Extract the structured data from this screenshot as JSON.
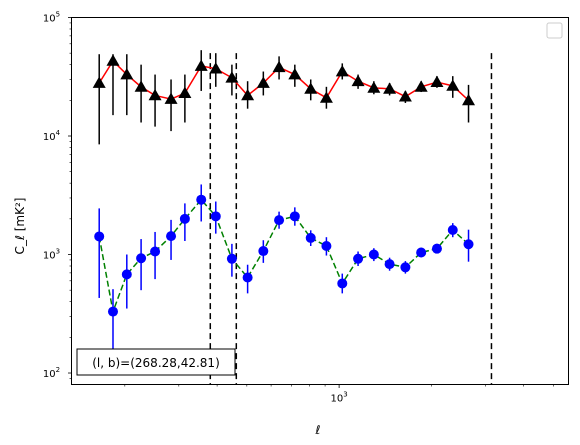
{
  "chart_data": {
    "type": "scatter",
    "title": "",
    "xlabel": "ℓ",
    "ylabel": "C_ℓ [mK²]",
    "xscale": "log",
    "yscale": "log",
    "xlim": [
      134,
      5600
    ],
    "ylim": [
      80,
      100000
    ],
    "x_tick_labels": [
      {
        "value": 1000,
        "base": "10",
        "exp": "3"
      }
    ],
    "y_tick_labels": [
      {
        "value": 100,
        "base": "10",
        "exp": "2"
      },
      {
        "value": 1000,
        "base": "10",
        "exp": "3"
      },
      {
        "value": 10000,
        "base": "10",
        "exp": "4"
      },
      {
        "value": 100000,
        "base": "10",
        "exp": "5"
      }
    ],
    "legend": {
      "location": "upper-right",
      "entries": []
    },
    "annotation": {
      "text": "(l, b)=(268.28,42.81)",
      "location": "lower-left"
    },
    "vlines": [
      380,
      462,
      3140
    ],
    "series": [
      {
        "marker": "triangle",
        "marker_color": "#000000",
        "line_color": "#ff0000",
        "line_style": "solid",
        "points": [
          {
            "x": 165,
            "y": 28000,
            "lo": 8500,
            "hi": 49000
          },
          {
            "x": 183,
            "y": 43000,
            "lo": 15000,
            "hi": 49000
          },
          {
            "x": 203,
            "y": 33000,
            "lo": 15000,
            "hi": 49000
          },
          {
            "x": 226,
            "y": 26000,
            "lo": 13000,
            "hi": 40000
          },
          {
            "x": 251,
            "y": 22000,
            "lo": 12000,
            "hi": 33000
          },
          {
            "x": 283,
            "y": 20500,
            "lo": 11000,
            "hi": 30000
          },
          {
            "x": 314,
            "y": 23000,
            "lo": 13000,
            "hi": 33000
          },
          {
            "x": 355,
            "y": 39000,
            "lo": 24000,
            "hi": 53000
          },
          {
            "x": 396,
            "y": 37000,
            "lo": 26000,
            "hi": 50000
          },
          {
            "x": 447,
            "y": 31000,
            "lo": 22000,
            "hi": 40000
          },
          {
            "x": 503,
            "y": 22000,
            "lo": 17000,
            "hi": 29000
          },
          {
            "x": 566,
            "y": 28000,
            "lo": 22000,
            "hi": 35000
          },
          {
            "x": 637,
            "y": 38000,
            "lo": 30000,
            "hi": 47000
          },
          {
            "x": 717,
            "y": 33000,
            "lo": 26000,
            "hi": 40000
          },
          {
            "x": 808,
            "y": 25000,
            "lo": 20000,
            "hi": 30000
          },
          {
            "x": 909,
            "y": 21000,
            "lo": 17000,
            "hi": 26000
          },
          {
            "x": 1024,
            "y": 35000,
            "lo": 30000,
            "hi": 41000
          },
          {
            "x": 1153,
            "y": 29000,
            "lo": 25000,
            "hi": 33000
          },
          {
            "x": 1298,
            "y": 25500,
            "lo": 22500,
            "hi": 29000
          },
          {
            "x": 1461,
            "y": 25000,
            "lo": 22000,
            "hi": 28000
          },
          {
            "x": 1645,
            "y": 21500,
            "lo": 19000,
            "hi": 24000
          },
          {
            "x": 1852,
            "y": 26000,
            "lo": 23500,
            "hi": 29000
          },
          {
            "x": 2085,
            "y": 28500,
            "lo": 25500,
            "hi": 32000
          },
          {
            "x": 2348,
            "y": 26500,
            "lo": 21000,
            "hi": 32000
          },
          {
            "x": 2643,
            "y": 20000,
            "lo": 13000,
            "hi": 27000
          }
        ]
      },
      {
        "marker": "circle",
        "marker_color": "#0000ff",
        "line_color": "#008000",
        "line_style": "dashed",
        "points": [
          {
            "x": 165,
            "y": 1420,
            "lo": 430,
            "hi": 2450
          },
          {
            "x": 183,
            "y": 330,
            "lo": 150,
            "hi": 510
          },
          {
            "x": 203,
            "y": 680,
            "lo": 350,
            "hi": 1000
          },
          {
            "x": 226,
            "y": 930,
            "lo": 500,
            "hi": 1350
          },
          {
            "x": 251,
            "y": 1060,
            "lo": 620,
            "hi": 1550
          },
          {
            "x": 283,
            "y": 1430,
            "lo": 900,
            "hi": 1960
          },
          {
            "x": 314,
            "y": 2000,
            "lo": 1300,
            "hi": 2700
          },
          {
            "x": 355,
            "y": 2900,
            "lo": 1900,
            "hi": 3900
          },
          {
            "x": 396,
            "y": 2100,
            "lo": 1500,
            "hi": 2800
          },
          {
            "x": 447,
            "y": 920,
            "lo": 650,
            "hi": 1230
          },
          {
            "x": 503,
            "y": 640,
            "lo": 470,
            "hi": 820
          },
          {
            "x": 566,
            "y": 1070,
            "lo": 850,
            "hi": 1320
          },
          {
            "x": 637,
            "y": 1950,
            "lo": 1650,
            "hi": 2300
          },
          {
            "x": 717,
            "y": 2100,
            "lo": 1750,
            "hi": 2500
          },
          {
            "x": 808,
            "y": 1380,
            "lo": 1180,
            "hi": 1600
          },
          {
            "x": 909,
            "y": 1180,
            "lo": 980,
            "hi": 1400
          },
          {
            "x": 1024,
            "y": 570,
            "lo": 470,
            "hi": 690
          },
          {
            "x": 1153,
            "y": 920,
            "lo": 800,
            "hi": 1060
          },
          {
            "x": 1298,
            "y": 1000,
            "lo": 880,
            "hi": 1130
          },
          {
            "x": 1461,
            "y": 830,
            "lo": 730,
            "hi": 940
          },
          {
            "x": 1645,
            "y": 780,
            "lo": 690,
            "hi": 880
          },
          {
            "x": 1852,
            "y": 1040,
            "lo": 950,
            "hi": 1140
          },
          {
            "x": 2085,
            "y": 1120,
            "lo": 1020,
            "hi": 1230
          },
          {
            "x": 2348,
            "y": 1610,
            "lo": 1400,
            "hi": 1840
          },
          {
            "x": 2643,
            "y": 1220,
            "lo": 870,
            "hi": 1620
          }
        ]
      }
    ]
  }
}
